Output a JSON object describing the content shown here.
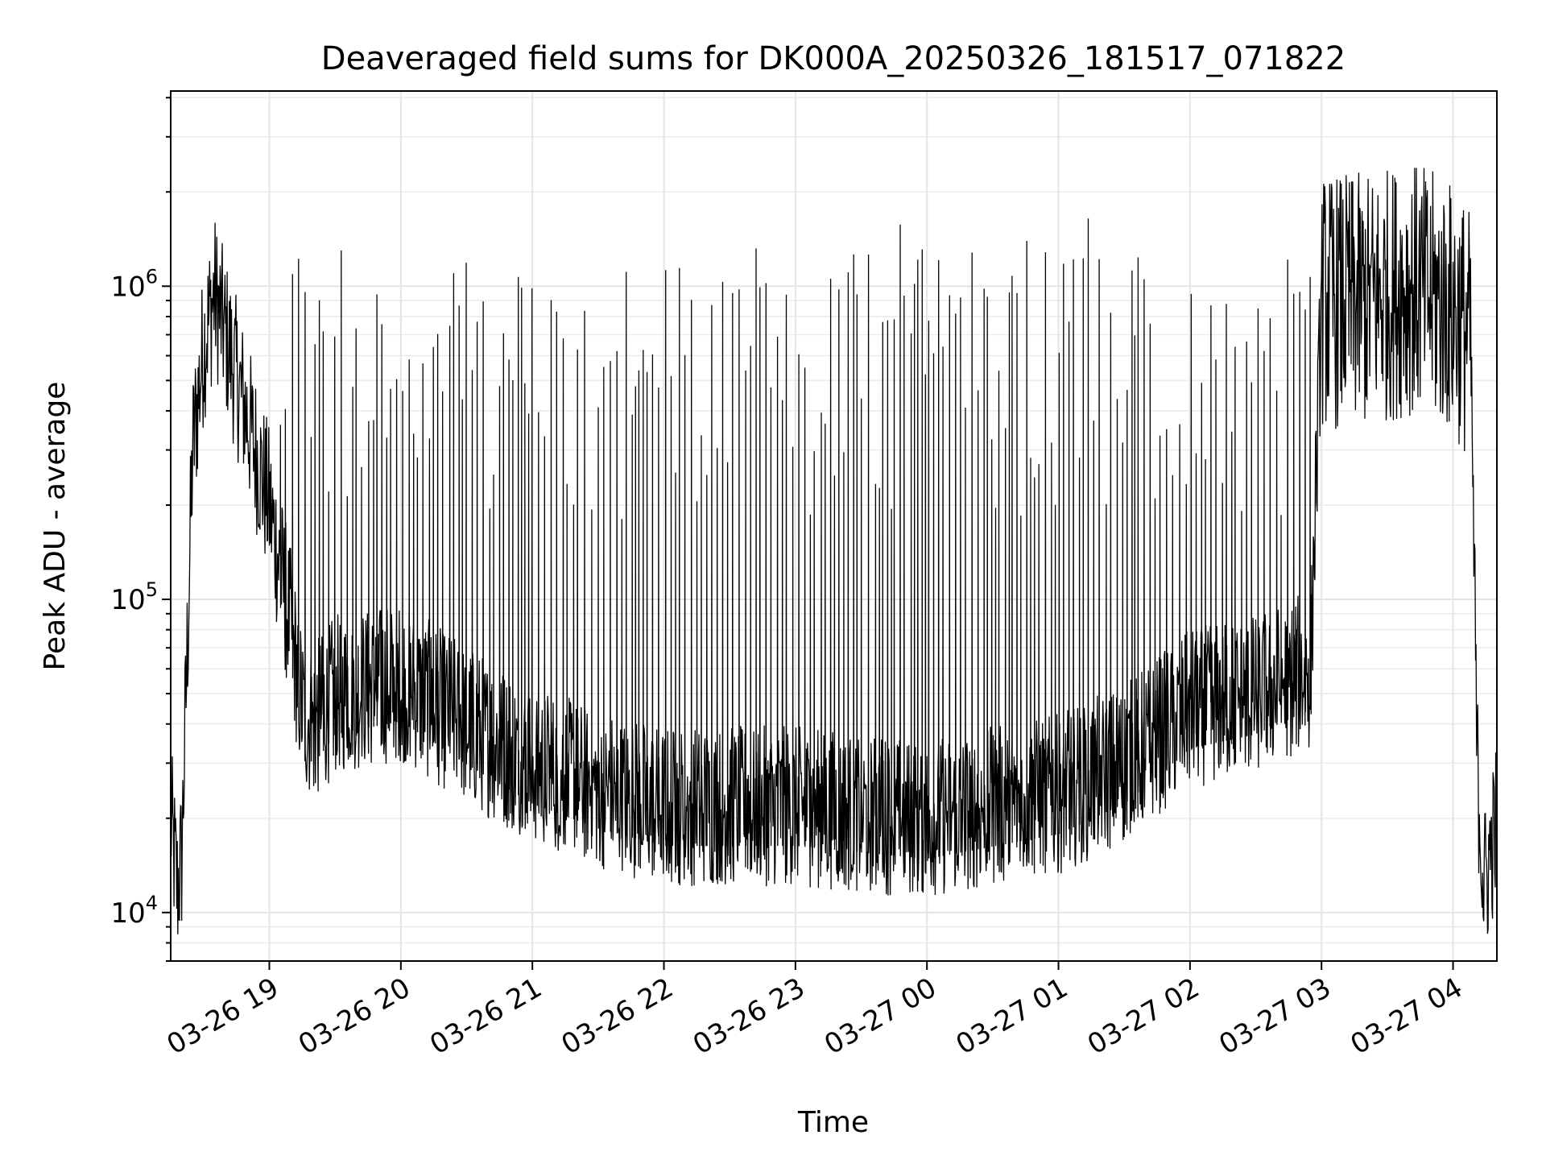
{
  "chart_data": {
    "type": "line",
    "title": "Deaveraged field sums for DK000A_20250326_181517_071822",
    "xlabel": "Time",
    "ylabel": "Peak ADU - average",
    "yscale": "log",
    "ylim": [
      7000,
      4200000
    ],
    "xlim": [
      "2025-03-26 18:15",
      "2025-03-27 04:20"
    ],
    "grid": true,
    "x_ticks": [
      "2025-03-26 19:00",
      "2025-03-26 20:00",
      "2025-03-26 21:00",
      "2025-03-26 22:00",
      "2025-03-26 23:00",
      "2025-03-27 00:00",
      "2025-03-27 01:00",
      "2025-03-27 02:00",
      "2025-03-27 03:00",
      "2025-03-27 04:00"
    ],
    "x_tick_labels": [
      "03-26 19",
      "03-26 20",
      "03-26 21",
      "03-26 22",
      "03-26 23",
      "03-27 00",
      "03-27 01",
      "03-27 02",
      "03-27 03",
      "03-27 04"
    ],
    "y_ticks": [
      {
        "value": 10000,
        "base": "10",
        "exp": "4"
      },
      {
        "value": 100000,
        "base": "10",
        "exp": "5"
      },
      {
        "value": 1000000,
        "base": "10",
        "exp": "6"
      }
    ],
    "series": [
      {
        "color": "#000000",
        "baseline": {
          "x": [
            "2025-03-26 18:15",
            "2025-03-26 18:18",
            "2025-03-26 18:20",
            "2025-03-26 18:25",
            "2025-03-26 18:30",
            "2025-03-26 18:35",
            "2025-03-26 18:40",
            "2025-03-26 18:50",
            "2025-03-26 19:00",
            "2025-03-26 19:10",
            "2025-03-26 19:15",
            "2025-03-26 19:20",
            "2025-03-26 19:30",
            "2025-03-26 20:00",
            "2025-03-26 20:30",
            "2025-03-26 21:00",
            "2025-03-26 21:30",
            "2025-03-26 22:00",
            "2025-03-26 23:00",
            "2025-03-27 00:00",
            "2025-03-27 01:00",
            "2025-03-27 01:30",
            "2025-03-27 02:00",
            "2025-03-27 02:30",
            "2025-03-27 02:55",
            "2025-03-27 03:00",
            "2025-03-27 03:20",
            "2025-03-27 03:40",
            "2025-03-27 04:00",
            "2025-03-27 04:08",
            "2025-03-27 04:11",
            "2025-03-27 04:14",
            "2025-03-27 04:20"
          ],
          "y": [
            20000,
            12000,
            15000,
            300000,
            650000,
            950000,
            700000,
            380000,
            200000,
            80000,
            45000,
            40000,
            50000,
            55000,
            40000,
            30000,
            25000,
            22000,
            22000,
            20000,
            24000,
            30000,
            45000,
            50000,
            60000,
            900000,
            900000,
            1000000,
            850000,
            700000,
            30000,
            12000,
            20000
          ]
        },
        "noise_band": [
          0.55,
          1.8
        ],
        "spikes": {
          "interval_minutes": 2.3,
          "range": [
            "2025-03-26 19:05",
            "2025-03-27 02:55"
          ],
          "peak_min": 180000,
          "peak_max": 1350000
        }
      }
    ]
  }
}
